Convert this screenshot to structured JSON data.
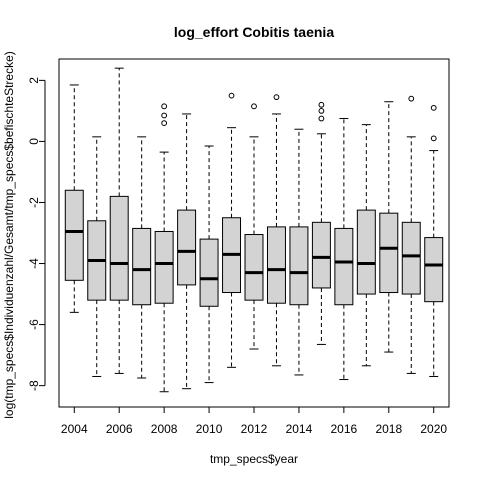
{
  "chart_data": {
    "type": "boxplot",
    "title": "log_effort Cobitis taenia",
    "xlabel": "tmp_specs$year",
    "ylabel": "log(tmp_specs$Individuenzahl/Gesamt/tmp_specs$befischteStrecke)",
    "ylim": [
      -8.7,
      2.7
    ],
    "y_ticks": [
      -8,
      -6,
      -4,
      -2,
      0,
      2
    ],
    "x_tick_labels": [
      "2004",
      "2006",
      "2008",
      "2010",
      "2012",
      "2014",
      "2016",
      "2018",
      "2020"
    ],
    "box_color": "#d3d3d3",
    "categories": [
      "2004",
      "2005",
      "2006",
      "2007",
      "2008",
      "2009",
      "2010",
      "2011",
      "2012",
      "2013",
      "2014",
      "2015",
      "2016",
      "2017",
      "2018",
      "2019",
      "2020"
    ],
    "boxes": [
      {
        "year": "2004",
        "min": -5.6,
        "q1": -4.55,
        "median": -2.95,
        "q3": -1.6,
        "max": 1.85,
        "outliers": []
      },
      {
        "year": "2005",
        "min": -7.7,
        "q1": -5.2,
        "median": -3.9,
        "q3": -2.6,
        "max": 0.15,
        "outliers": []
      },
      {
        "year": "2006",
        "min": -7.6,
        "q1": -5.2,
        "median": -4.0,
        "q3": -1.8,
        "max": 2.4,
        "outliers": []
      },
      {
        "year": "2007",
        "min": -7.75,
        "q1": -5.35,
        "median": -4.2,
        "q3": -2.85,
        "max": 0.15,
        "outliers": []
      },
      {
        "year": "2008",
        "min": -8.2,
        "q1": -5.3,
        "median": -4.0,
        "q3": -2.95,
        "max": -0.35,
        "outliers": [
          0.6,
          0.85,
          1.15
        ]
      },
      {
        "year": "2009",
        "min": -8.1,
        "q1": -4.7,
        "median": -3.6,
        "q3": -2.25,
        "max": 0.9,
        "outliers": []
      },
      {
        "year": "2010",
        "min": -7.9,
        "q1": -5.4,
        "median": -4.5,
        "q3": -3.2,
        "max": -0.15,
        "outliers": []
      },
      {
        "year": "2011",
        "min": -7.4,
        "q1": -4.95,
        "median": -3.7,
        "q3": -2.5,
        "max": 0.45,
        "outliers": [
          1.5
        ]
      },
      {
        "year": "2012",
        "min": -6.8,
        "q1": -5.2,
        "median": -4.3,
        "q3": -3.05,
        "max": 0.15,
        "outliers": [
          1.15
        ]
      },
      {
        "year": "2013",
        "min": -7.35,
        "q1": -5.3,
        "median": -4.2,
        "q3": -2.8,
        "max": 0.9,
        "outliers": [
          1.45
        ]
      },
      {
        "year": "2014",
        "min": -7.65,
        "q1": -5.35,
        "median": -4.3,
        "q3": -2.8,
        "max": 0.4,
        "outliers": []
      },
      {
        "year": "2015",
        "min": -6.65,
        "q1": -4.8,
        "median": -3.8,
        "q3": -2.65,
        "max": 0.25,
        "outliers": [
          0.75,
          1.0,
          1.2
        ]
      },
      {
        "year": "2016",
        "min": -7.8,
        "q1": -5.35,
        "median": -3.95,
        "q3": -2.85,
        "max": 0.75,
        "outliers": []
      },
      {
        "year": "2017",
        "min": -7.35,
        "q1": -5.0,
        "median": -4.0,
        "q3": -2.25,
        "max": 0.55,
        "outliers": []
      },
      {
        "year": "2018",
        "min": -6.9,
        "q1": -4.95,
        "median": -3.5,
        "q3": -2.35,
        "max": 1.3,
        "outliers": []
      },
      {
        "year": "2019",
        "min": -7.6,
        "q1": -5.0,
        "median": -3.75,
        "q3": -2.65,
        "max": 0.15,
        "outliers": [
          1.4
        ]
      },
      {
        "year": "2020",
        "min": -7.7,
        "q1": -5.25,
        "median": -4.05,
        "q3": -3.15,
        "max": -0.3,
        "outliers": [
          0.1,
          1.1
        ]
      }
    ]
  }
}
